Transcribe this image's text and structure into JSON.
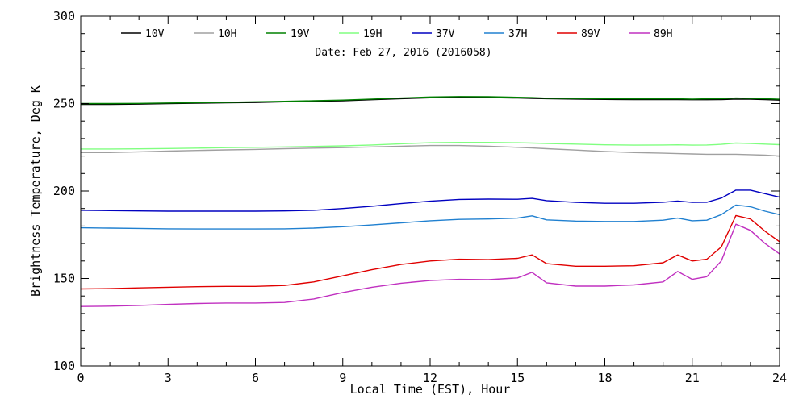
{
  "chart_data": {
    "type": "line",
    "title": "",
    "annotation": "Date: Feb 27, 2016 (2016058)",
    "xlabel": "Local Time (EST), Hour",
    "ylabel": "Brightness Temperature, Deg K",
    "xlim": [
      0,
      24
    ],
    "ylim": [
      100,
      300
    ],
    "xticks": [
      0,
      3,
      6,
      9,
      12,
      15,
      18,
      21,
      24
    ],
    "yticks": [
      100,
      150,
      200,
      250,
      300
    ],
    "grid": false,
    "legend_position": "top",
    "x": [
      0,
      1,
      2,
      3,
      4,
      5,
      6,
      7,
      8,
      9,
      10,
      11,
      12,
      13,
      14,
      15,
      15.5,
      16,
      17,
      18,
      19,
      20,
      20.5,
      21,
      21.5,
      22,
      22.5,
      23,
      23.5,
      24
    ],
    "series": [
      {
        "name": "10V",
        "color": "#000000",
        "values": [
          249.5,
          249.5,
          249.7,
          250,
          250.2,
          250.4,
          250.6,
          251,
          251.3,
          251.6,
          252.2,
          252.8,
          253.3,
          253.5,
          253.4,
          253.2,
          253,
          252.8,
          252.6,
          252.4,
          252.3,
          252.3,
          252.3,
          252.2,
          252.2,
          252.3,
          252.6,
          252.5,
          252.3,
          252
        ]
      },
      {
        "name": "10H",
        "color": "#a0a0a0",
        "values": [
          222,
          222,
          222.4,
          222.8,
          223.2,
          223.5,
          223.8,
          224.2,
          224.5,
          224.8,
          225.2,
          225.6,
          226,
          226,
          225.6,
          225,
          224.6,
          224.2,
          223.4,
          222.6,
          222,
          221.6,
          221.4,
          221.2,
          221,
          221,
          221,
          220.8,
          220.5,
          220
        ]
      },
      {
        "name": "19V",
        "color": "#008000",
        "values": [
          250,
          250,
          250.1,
          250.3,
          250.5,
          250.7,
          251,
          251.3,
          251.6,
          252,
          252.6,
          253.2,
          253.8,
          254,
          253.9,
          253.6,
          253.4,
          253.1,
          252.9,
          252.8,
          252.7,
          252.7,
          252.7,
          252.6,
          252.7,
          252.8,
          253.2,
          253,
          252.8,
          252.5
        ]
      },
      {
        "name": "19H",
        "color": "#80ff80",
        "values": [
          224,
          224,
          224.1,
          224.3,
          224.5,
          224.8,
          225,
          225.2,
          225.5,
          225.8,
          226.3,
          227,
          227.6,
          227.8,
          227.8,
          227.6,
          227.4,
          227.2,
          226.8,
          226.4,
          226.2,
          226.3,
          226.4,
          226.2,
          226.3,
          226.7,
          227.4,
          227.2,
          226.8,
          226.5
        ]
      },
      {
        "name": "37V",
        "color": "#0000c0",
        "values": [
          189,
          188.8,
          188.6,
          188.5,
          188.5,
          188.5,
          188.5,
          188.6,
          189,
          190,
          191.3,
          192.8,
          194.2,
          195.2,
          195.4,
          195.3,
          195.8,
          194.5,
          193.5,
          193,
          193,
          193.6,
          194.3,
          193.5,
          193.6,
          196,
          200.5,
          200.5,
          198.5,
          196.5
        ]
      },
      {
        "name": "37H",
        "color": "#2080d0",
        "values": [
          179,
          178.8,
          178.6,
          178.4,
          178.3,
          178.3,
          178.3,
          178.4,
          178.8,
          179.6,
          180.6,
          181.8,
          183,
          183.8,
          184,
          184.5,
          185.8,
          183.5,
          182.8,
          182.6,
          182.6,
          183.3,
          184.5,
          183,
          183.3,
          186.5,
          192,
          191,
          188.5,
          186.5
        ]
      },
      {
        "name": "89V",
        "color": "#e00000",
        "values": [
          144,
          144.2,
          144.6,
          145,
          145.3,
          145.5,
          145.5,
          146,
          148,
          151.5,
          155,
          158,
          160,
          161,
          160.8,
          161.5,
          163.5,
          158.5,
          157,
          157,
          157.3,
          159,
          163.5,
          160,
          161,
          168,
          186,
          184,
          177,
          171
        ]
      },
      {
        "name": "89H",
        "color": "#c030c0",
        "values": [
          134,
          134.2,
          134.6,
          135.2,
          135.7,
          136,
          136,
          136.3,
          138.3,
          142,
          145,
          147.3,
          148.8,
          149.5,
          149.3,
          150.3,
          153.5,
          147.5,
          145.6,
          145.6,
          146.3,
          148,
          154,
          149.5,
          151,
          160,
          181,
          177.5,
          170,
          164
        ]
      }
    ]
  }
}
